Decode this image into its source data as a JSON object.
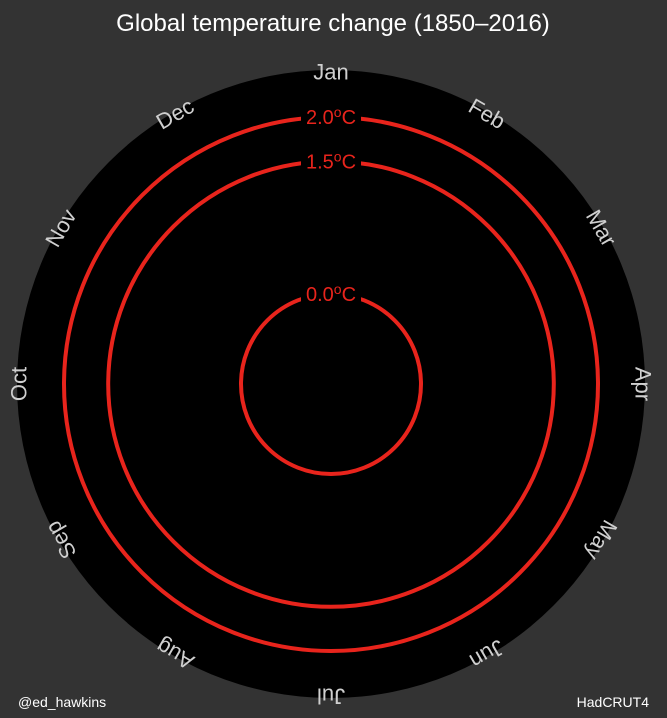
{
  "chart_data": {
    "type": "radial",
    "title": "Global temperature change (1850–2016)",
    "months": [
      "Jan",
      "Feb",
      "Mar",
      "Apr",
      "May",
      "Jun",
      "Jul",
      "Aug",
      "Sep",
      "Oct",
      "Nov",
      "Dec"
    ],
    "reference_rings": [
      {
        "value": 0.0,
        "label": "0.0",
        "unit": "°C"
      },
      {
        "value": 1.5,
        "label": "1.5",
        "unit": "°C"
      },
      {
        "value": 2.0,
        "label": "2.0",
        "unit": "°C"
      }
    ],
    "series": [],
    "colors": {
      "background": "#333333",
      "plot_area": "#000000",
      "rings": "#e8241c",
      "month_labels": "#cfcfcf",
      "title": "#ffffff"
    }
  },
  "credit": "@ed_hawkins",
  "source": "HadCRUT4"
}
